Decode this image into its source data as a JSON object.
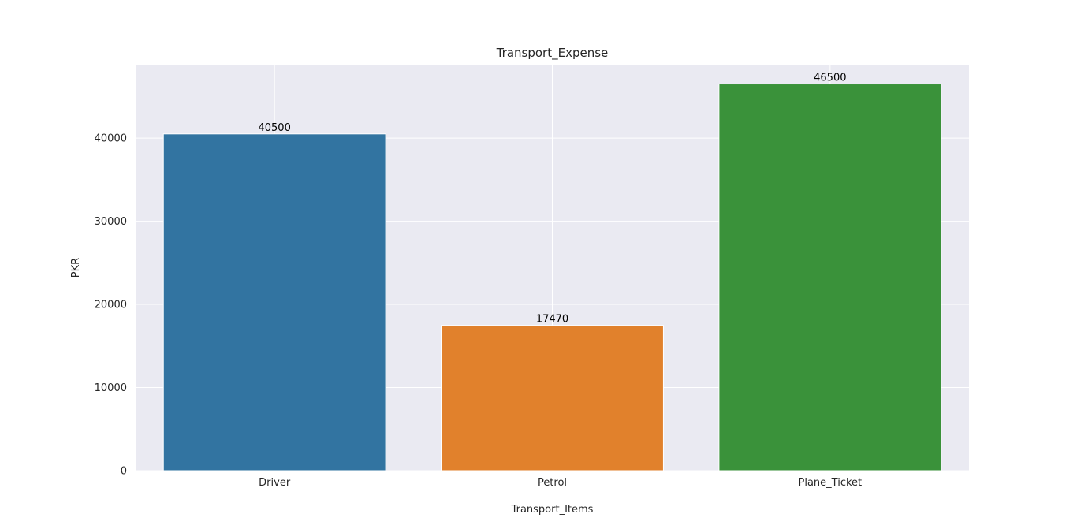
{
  "chart_data": {
    "type": "bar",
    "title": "Transport_Expense",
    "xlabel": "Transport_Items",
    "ylabel": "PKR",
    "categories": [
      "Driver",
      "Petrol",
      "Plane_Ticket"
    ],
    "values": [
      40500,
      17470,
      46500
    ],
    "data_labels": [
      "40500",
      "17470",
      "46500"
    ],
    "colors": [
      "#3274a1",
      "#e1812c",
      "#3a923a"
    ],
    "yticks": [
      0,
      10000,
      20000,
      30000,
      40000
    ],
    "ytick_labels": [
      "0",
      "10000",
      "20000",
      "30000",
      "40000"
    ],
    "ylim": [
      0,
      48825
    ],
    "grid": true,
    "legend": "none"
  },
  "style": {
    "plot_background": "#eaeaf2",
    "grid_color": "#ffffff"
  }
}
